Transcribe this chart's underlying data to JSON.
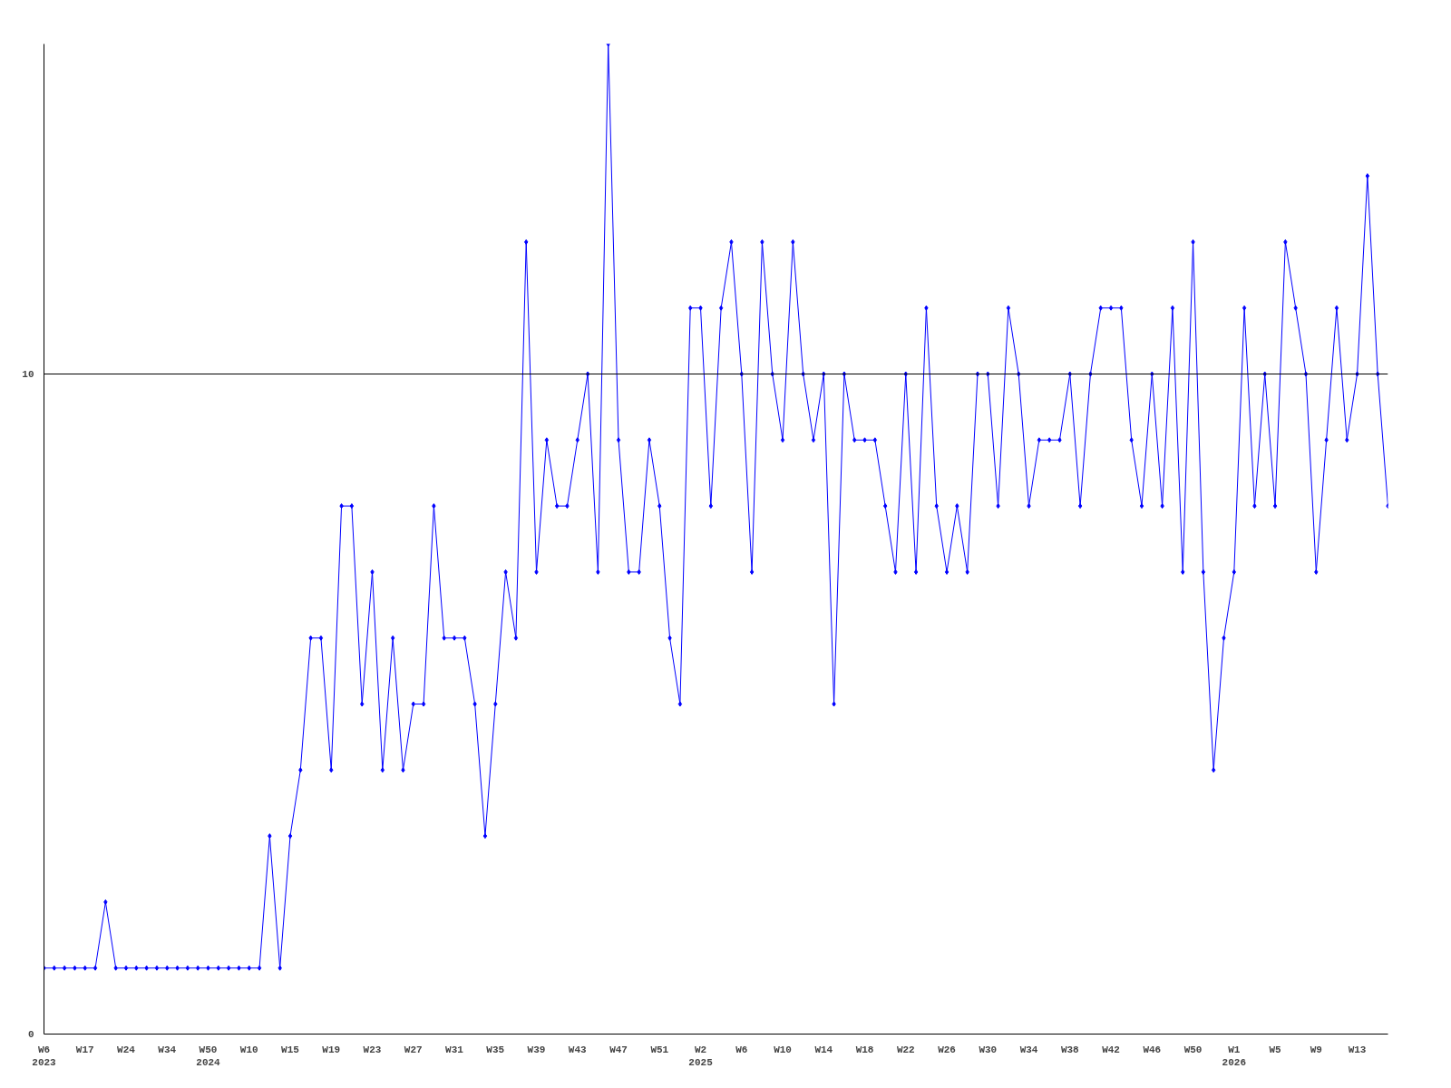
{
  "chart_data": {
    "type": "line",
    "marker": "diamond",
    "line_style": "solid",
    "grid": false,
    "categories": [
      "W6\n2023",
      null,
      null,
      null,
      "W17",
      null,
      null,
      null,
      "W24",
      null,
      null,
      null,
      "W34",
      null,
      null,
      null,
      "W50\n2024",
      null,
      null,
      null,
      "W10",
      null,
      null,
      null,
      "W15",
      null,
      null,
      null,
      "W19",
      null,
      null,
      null,
      "W23",
      null,
      null,
      null,
      "W27",
      null,
      null,
      null,
      "W31",
      null,
      null,
      null,
      "W35",
      null,
      null,
      null,
      "W39",
      null,
      null,
      null,
      "W43",
      null,
      null,
      null,
      "W47",
      null,
      null,
      null,
      "W51",
      null,
      null,
      null,
      "W2\n2025",
      null,
      null,
      null,
      "W6",
      null,
      null,
      null,
      "W10",
      null,
      null,
      null,
      "W14",
      null,
      null,
      null,
      "W18",
      null,
      null,
      null,
      "W22",
      null,
      null,
      null,
      "W26",
      null,
      null,
      null,
      "W30",
      null,
      null,
      null,
      "W34",
      null,
      null,
      null,
      "W38",
      null,
      null,
      null,
      "W42",
      null,
      null,
      null,
      "W46",
      null,
      null,
      null,
      "W50",
      null,
      null,
      null,
      "W1\n2026",
      null,
      null,
      null,
      "W5",
      null,
      null,
      null,
      "W9",
      null,
      null,
      null,
      "W13",
      null,
      null,
      null
    ],
    "series": [
      {
        "color": "#0000ff",
        "values": [
          1,
          1,
          1,
          1,
          1,
          1,
          2,
          1,
          1,
          1,
          1,
          1,
          1,
          1,
          1,
          1,
          1,
          1,
          1,
          1,
          1,
          1,
          3,
          1,
          3,
          4,
          6,
          6,
          4,
          8,
          8,
          5,
          7,
          4,
          6,
          4,
          5,
          5,
          8,
          6,
          6,
          6,
          5,
          3,
          5,
          7,
          6,
          12,
          7,
          9,
          8,
          8,
          9,
          10,
          7,
          15,
          9,
          7,
          7,
          9,
          8,
          6,
          5,
          11,
          11,
          8,
          11,
          12,
          10,
          7,
          12,
          10,
          9,
          12,
          10,
          9,
          10,
          5,
          10,
          9,
          9,
          9,
          8,
          7,
          10,
          7,
          11,
          8,
          7,
          8,
          7,
          10,
          10,
          8,
          11,
          10,
          8,
          9,
          9,
          9,
          10,
          8,
          10,
          11,
          11,
          11,
          9,
          8,
          10,
          8,
          11,
          7,
          12,
          7,
          4,
          6,
          7,
          11,
          8,
          10,
          8,
          12,
          11,
          10,
          7,
          9,
          11,
          9,
          10,
          13,
          10,
          8
        ]
      }
    ],
    "ylim": [
      0,
      15
    ],
    "yticks": [
      0,
      10
    ],
    "ref_lines": [
      {
        "axis": "y",
        "value": 10,
        "color": "#000000"
      }
    ]
  }
}
